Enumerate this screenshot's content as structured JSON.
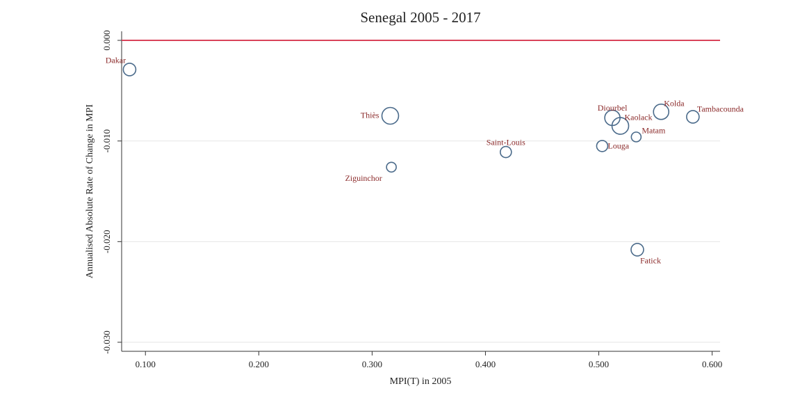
{
  "chart_data": {
    "type": "scatter",
    "title": "Senegal 2005 - 2017",
    "x_label": "MPI(T) in 2005",
    "y_label": "Annualised Absolute Rate of Change in MPI",
    "series": [
      {
        "name": null,
        "color": "#4a6a8a",
        "labels": [
          "Dakar",
          "Thiès",
          "Ziguinchor",
          "Saint-Louis",
          "Diourbel",
          "Kaolack",
          "Kolda",
          "Tambacounda",
          "Matam",
          "Louga",
          "Fatick"
        ],
        "x": [
          0.086,
          0.316,
          0.317,
          0.418,
          0.512,
          0.519,
          0.555,
          0.583,
          0.533,
          0.503,
          0.534
        ],
        "values": [
          -0.0029,
          -0.0075,
          -0.0126,
          -0.0111,
          -0.0077,
          -0.0085,
          -0.0071,
          -0.0076,
          -0.0096,
          -0.0105,
          -0.0208
        ],
        "sizes": [
          9,
          12,
          7,
          8,
          11,
          12,
          11,
          9,
          7,
          8,
          9
        ]
      }
    ],
    "label_color": "#8b2a2a",
    "reference_line": {
      "y": 0,
      "color": "#d9435a"
    },
    "xlim": [
      0.079,
      0.607
    ],
    "ylim": [
      -0.0309,
      0.0009
    ],
    "xticks": [
      {
        "value": 0.1,
        "label": "0.100"
      },
      {
        "value": 0.2,
        "label": "0.200"
      },
      {
        "value": 0.3,
        "label": "0.300"
      },
      {
        "value": 0.4,
        "label": "0.400"
      },
      {
        "value": 0.5,
        "label": "0.500"
      },
      {
        "value": 0.6,
        "label": "0.600"
      }
    ],
    "yticks": [
      {
        "value": 0,
        "label": "0.000"
      },
      {
        "value": -0.01,
        "label": "-0.010"
      },
      {
        "value": -0.02,
        "label": "-0.020"
      },
      {
        "value": -0.03,
        "label": "-0.030"
      }
    ],
    "grid": true
  }
}
